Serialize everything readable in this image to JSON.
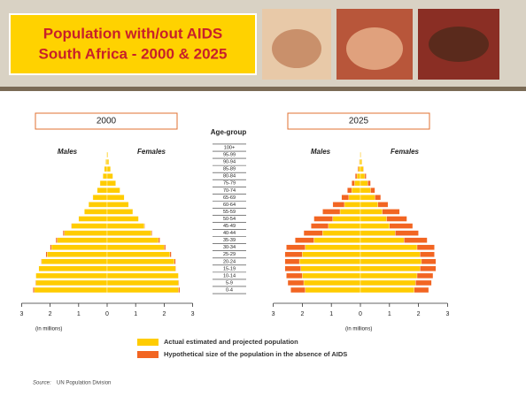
{
  "header": {
    "title_lines": [
      "Population with/out AIDS",
      "South Africa - 2000 & 2025"
    ]
  },
  "age_axis_label": "Age-group",
  "source": {
    "label": "Source:",
    "text": "UN Population Division"
  },
  "chart_data": [
    {
      "type": "pyramid",
      "title": "2000",
      "left_label": "Males",
      "right_label": "Females",
      "xlabel": "(in millions)",
      "xlim": [
        0,
        3
      ],
      "xticks": [
        0,
        1,
        2,
        3
      ],
      "categories": [
        "0-4",
        "5-9",
        "10-14",
        "15-19",
        "20-24",
        "25-29",
        "30-34",
        "35-39",
        "40-44",
        "45-49",
        "50-54",
        "55-59",
        "60-64",
        "65-69",
        "70-74",
        "75-79",
        "80-84",
        "85-89",
        "90-94",
        "95-99",
        "100+"
      ],
      "series": [
        {
          "name": "Actual estimated and projected population",
          "color": "#ffcc00",
          "males": [
            2.55,
            2.5,
            2.5,
            2.4,
            2.3,
            2.1,
            1.95,
            1.75,
            1.5,
            1.25,
            1.0,
            0.8,
            0.65,
            0.5,
            0.35,
            0.25,
            0.15,
            0.1,
            0.05,
            0.02,
            0.01
          ],
          "females": [
            2.5,
            2.5,
            2.5,
            2.4,
            2.35,
            2.2,
            2.0,
            1.8,
            1.55,
            1.3,
            1.1,
            0.9,
            0.75,
            0.6,
            0.45,
            0.3,
            0.2,
            0.12,
            0.06,
            0.03,
            0.01
          ]
        },
        {
          "name": "Hypothetical size of the population in the absence of AIDS",
          "color": "#f26522",
          "males": [
            2.6,
            2.52,
            2.5,
            2.4,
            2.32,
            2.15,
            2.0,
            1.8,
            1.55,
            1.27,
            1.0,
            0.8,
            0.65,
            0.5,
            0.35,
            0.25,
            0.15,
            0.1,
            0.05,
            0.02,
            0.01
          ],
          "females": [
            2.55,
            2.52,
            2.5,
            2.42,
            2.4,
            2.25,
            2.05,
            1.85,
            1.58,
            1.32,
            1.1,
            0.9,
            0.75,
            0.6,
            0.45,
            0.3,
            0.2,
            0.12,
            0.06,
            0.03,
            0.01
          ]
        }
      ]
    },
    {
      "type": "pyramid",
      "title": "2025",
      "left_label": "Males",
      "right_label": "Females",
      "xlabel": "(in millions)",
      "xlim": [
        0,
        3
      ],
      "xticks": [
        0,
        1,
        2,
        3
      ],
      "categories": [
        "0-4",
        "5-9",
        "10-14",
        "15-19",
        "20-24",
        "25-29",
        "30-34",
        "35-39",
        "40-44",
        "45-49",
        "50-54",
        "55-59",
        "60-64",
        "65-69",
        "70-74",
        "75-79",
        "80-84",
        "85-89",
        "90-94",
        "95-99",
        "100+"
      ],
      "series": [
        {
          "name": "Actual estimated and projected population",
          "color": "#ffcc00",
          "males": [
            1.9,
            1.95,
            2.0,
            2.05,
            2.1,
            2.0,
            1.9,
            1.6,
            1.3,
            1.1,
            0.95,
            0.7,
            0.55,
            0.4,
            0.3,
            0.2,
            0.12,
            0.07,
            0.04,
            0.02,
            0.01
          ],
          "females": [
            1.85,
            1.9,
            1.95,
            2.05,
            2.1,
            2.05,
            1.95,
            1.5,
            1.2,
            1.0,
            0.9,
            0.75,
            0.6,
            0.5,
            0.35,
            0.25,
            0.15,
            0.1,
            0.05,
            0.02,
            0.01
          ]
        },
        {
          "name": "Hypothetical size of the population in the absence of AIDS",
          "color": "#f26522",
          "males": [
            2.4,
            2.5,
            2.55,
            2.6,
            2.6,
            2.6,
            2.55,
            2.25,
            1.95,
            1.7,
            1.6,
            1.3,
            0.95,
            0.65,
            0.45,
            0.3,
            0.18,
            0.1,
            0.05,
            0.02,
            0.01
          ],
          "females": [
            2.35,
            2.45,
            2.5,
            2.6,
            2.6,
            2.55,
            2.55,
            2.3,
            2.0,
            1.8,
            1.6,
            1.35,
            0.95,
            0.7,
            0.5,
            0.35,
            0.2,
            0.12,
            0.06,
            0.03,
            0.01
          ]
        }
      ]
    }
  ]
}
